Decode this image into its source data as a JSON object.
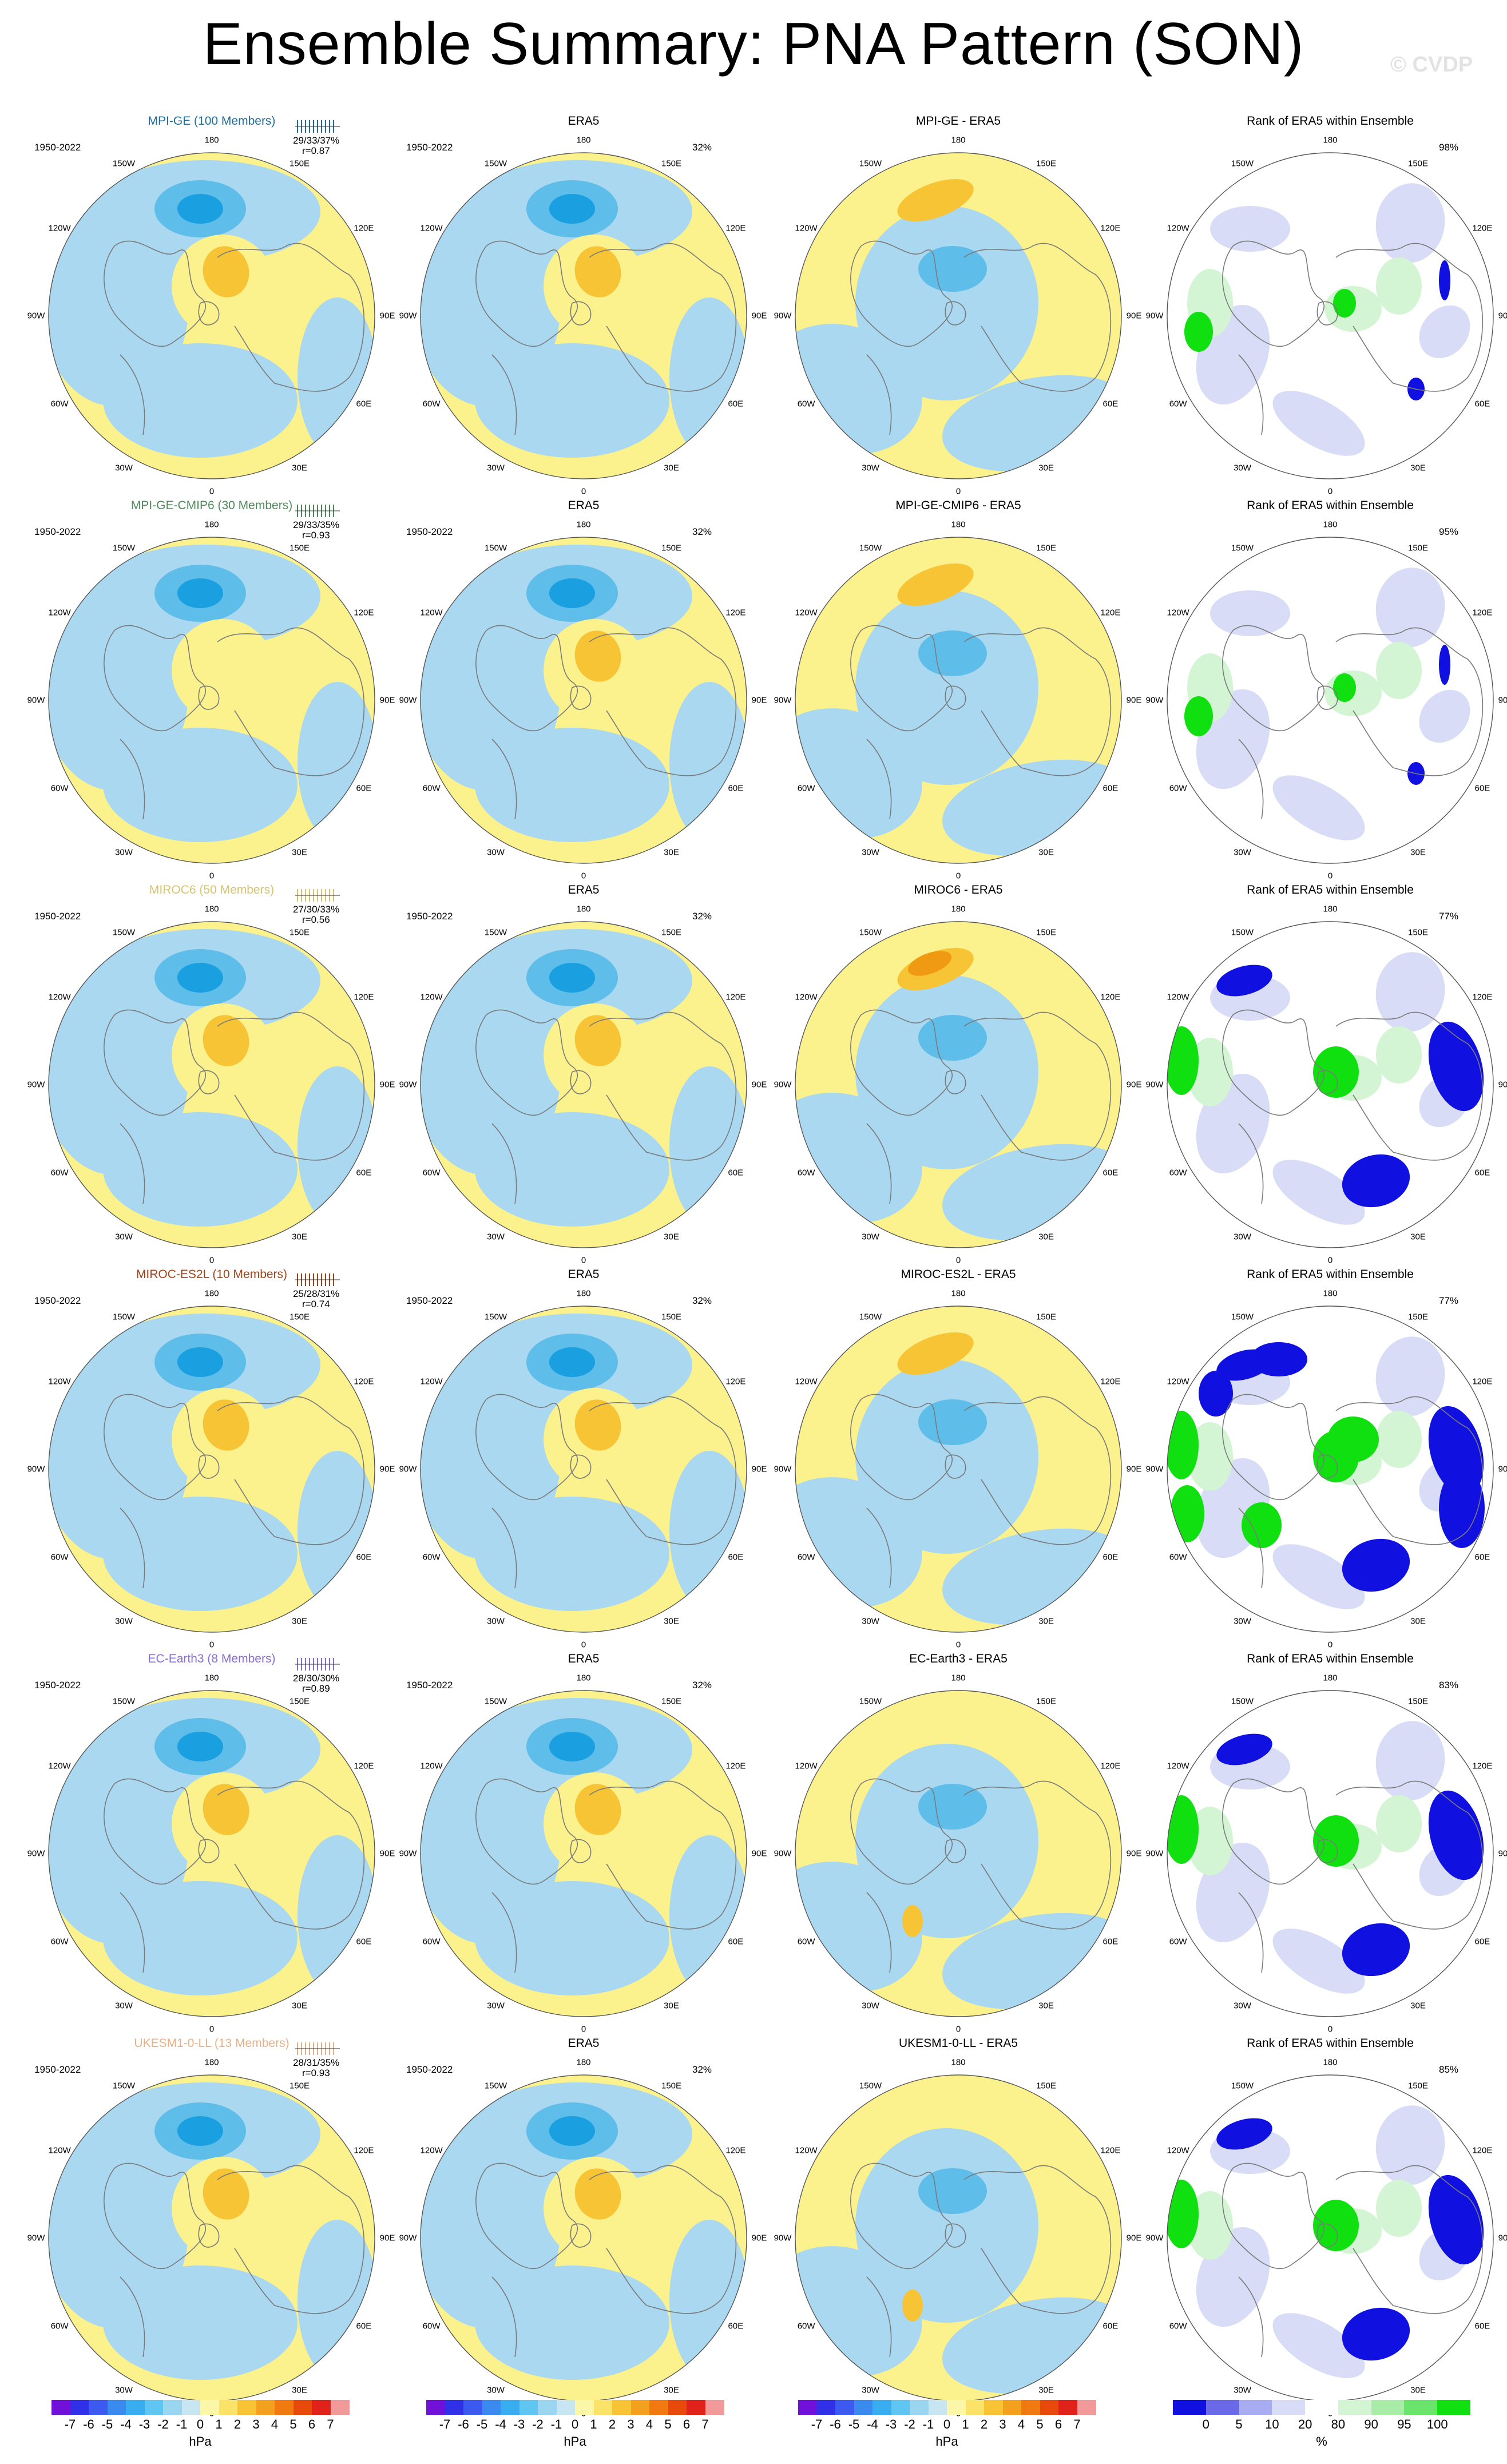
{
  "title": "Ensemble Summary: PNA Pattern (SON)",
  "watermark": "© CVDP",
  "period": "1950-2022",
  "lon_labels": [
    "180",
    "150E",
    "120E",
    "90E",
    "60E",
    "30E",
    "0",
    "30W",
    "60W",
    "90W",
    "120W",
    "150W"
  ],
  "colors": {
    "neg_light": "#a9d8f0",
    "neg_mid": "#5fbde9",
    "neg_strong": "#1a9fe0",
    "pos_light": "#fbf18d",
    "pos_mid": "#f7c436",
    "pos_strong": "#f09a14",
    "rank_low": "#1010e0",
    "rank_lowlight": "#d8dcf6",
    "rank_high": "#10e010",
    "rank_highlight": "#d4f5d4",
    "coast": "#7a7a7a"
  },
  "rows": [
    {
      "model": "MPI-GE (100 Members)",
      "model_color": "#1f6f9e",
      "stats": "29/33/37%",
      "r": "r=0.87",
      "obs_title": "ERA5",
      "obs_pct": "32%",
      "diff_title": "MPI-GE - ERA5",
      "rank_title": "Rank of ERA5 within Ensemble",
      "rank_pct": "98%",
      "model_max": "-3",
      "diff_pattern": "mild",
      "rank_pattern": "light"
    },
    {
      "model": "MPI-GE-CMIP6 (30 Members)",
      "model_color": "#4e8a5a",
      "stats": "29/33/35%",
      "r": "r=0.93",
      "obs_title": "ERA5",
      "obs_pct": "32%",
      "diff_title": "MPI-GE-CMIP6 - ERA5",
      "rank_title": "Rank of ERA5 within Ensemble",
      "rank_pct": "95%",
      "model_max": "-2",
      "diff_pattern": "mild",
      "rank_pattern": "light"
    },
    {
      "model": "MIROC6 (50 Members)",
      "model_color": "#d8c470",
      "stats": "27/30/33%",
      "r": "r=0.56",
      "obs_title": "ERA5",
      "obs_pct": "32%",
      "diff_title": "MIROC6 - ERA5",
      "rank_title": "Rank of ERA5 within Ensemble",
      "rank_pct": "77%",
      "model_max": "-3",
      "diff_pattern": "strong",
      "rank_pattern": "medium"
    },
    {
      "model": "MIROC-ES2L (10 Members)",
      "model_color": "#a0441a",
      "stats": "25/28/31%",
      "r": "r=0.74",
      "obs_title": "ERA5",
      "obs_pct": "32%",
      "diff_title": "MIROC-ES2L - ERA5",
      "rank_title": "Rank of ERA5 within Ensemble",
      "rank_pct": "77%",
      "model_max": "-3",
      "diff_pattern": "mild",
      "rank_pattern": "heavy"
    },
    {
      "model": "EC-Earth3 (8 Members)",
      "model_color": "#8a6ed8",
      "stats": "28/30/30%",
      "r": "r=0.89",
      "obs_title": "ERA5",
      "obs_pct": "32%",
      "diff_title": "EC-Earth3 - ERA5",
      "rank_title": "Rank of ERA5 within Ensemble",
      "rank_pct": "83%",
      "model_max": "-4",
      "diff_pattern": "weak",
      "rank_pattern": "medium"
    },
    {
      "model": "UKESM1-0-LL (13 Members)",
      "model_color": "#e8b088",
      "stats": "28/31/35%",
      "r": "r=0.93",
      "obs_title": "ERA5",
      "obs_pct": "32%",
      "diff_title": "UKESM1-0-LL - ERA5",
      "rank_title": "Rank of ERA5 within Ensemble",
      "rank_pct": "85%",
      "model_max": "-3",
      "diff_pattern": "weak",
      "rank_pattern": "medium"
    }
  ],
  "colorbar_hpa": {
    "ticks": [
      "-7",
      "-6",
      "-5",
      "-4",
      "-3",
      "-2",
      "-1",
      "0",
      "1",
      "2",
      "3",
      "4",
      "5",
      "6",
      "7"
    ],
    "unit": "hPa",
    "colors": [
      "#7010d8",
      "#3030e8",
      "#3c5af0",
      "#3a8af0",
      "#38aef0",
      "#5ec6f0",
      "#9ad6f0",
      "#c8e6f2",
      "#fbf6a8",
      "#fbe36a",
      "#f8c436",
      "#f3a01e",
      "#f07a10",
      "#e84a0c",
      "#e0221a",
      "#f29a9a"
    ]
  },
  "colorbar_rank": {
    "ticks": [
      "0",
      "5",
      "10",
      "20",
      "80",
      "90",
      "95",
      "100"
    ],
    "unit": "%",
    "colors": [
      "#1010e0",
      "#6a6ae8",
      "#a8acf0",
      "#d8dcf6",
      "#ffffff",
      "#d4f5d4",
      "#a8eca8",
      "#6ae46a",
      "#10e010"
    ]
  }
}
